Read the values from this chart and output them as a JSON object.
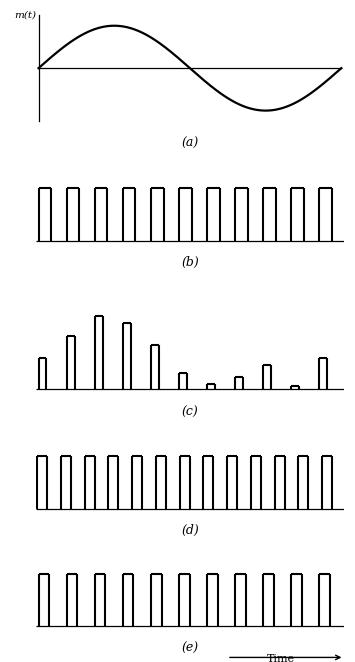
{
  "fig_width": 3.55,
  "fig_height": 6.62,
  "background": "#ffffff",
  "sine_freq": 1.0,
  "sine_phase": 0.0,
  "panel_a_label": "m(t)",
  "labels": [
    "(a)",
    "(b)",
    "(c)",
    "(d)",
    "(e)"
  ],
  "panel_b_n_pulses": 11,
  "panel_b_duty": 0.45,
  "panel_c_n_pulses": 11,
  "panel_c_duty": 0.28,
  "panel_d_n_pulses": 13,
  "panel_d_duty": 0.42,
  "panel_e_n_pulses": 11,
  "panel_e_duty": 0.38,
  "time_label": "Time",
  "lw_signal": 1.6,
  "lw_axis": 0.9,
  "lw_pulse": 1.5
}
